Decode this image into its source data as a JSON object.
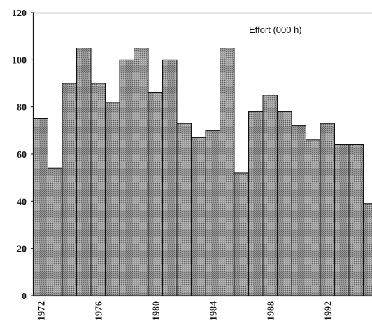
{
  "chart_data": {
    "type": "bar",
    "annotation": "Effort (000 h)",
    "categories": [
      "1972",
      "1973",
      "1974",
      "1975",
      "1976",
      "1977",
      "1978",
      "1979",
      "1980",
      "1981",
      "1982",
      "1983",
      "1984",
      "1985",
      "1986",
      "1987",
      "1988",
      "1989",
      "1990",
      "1991",
      "1992",
      "1993",
      "1994",
      "1995"
    ],
    "x_tick_labels": [
      "1972",
      "1976",
      "1980",
      "1984",
      "1988",
      "1992"
    ],
    "values": [
      75,
      54,
      90,
      105,
      90,
      82,
      100,
      105,
      86,
      100,
      73,
      67,
      70,
      105,
      52,
      78,
      85,
      78,
      72,
      66,
      73,
      64,
      64,
      39
    ],
    "y_ticks": [
      0,
      20,
      40,
      60,
      80,
      100,
      120
    ],
    "ylim": [
      0,
      120
    ],
    "bar_color": "#8c8c8c",
    "grid": false,
    "legend_position": "top-right"
  }
}
